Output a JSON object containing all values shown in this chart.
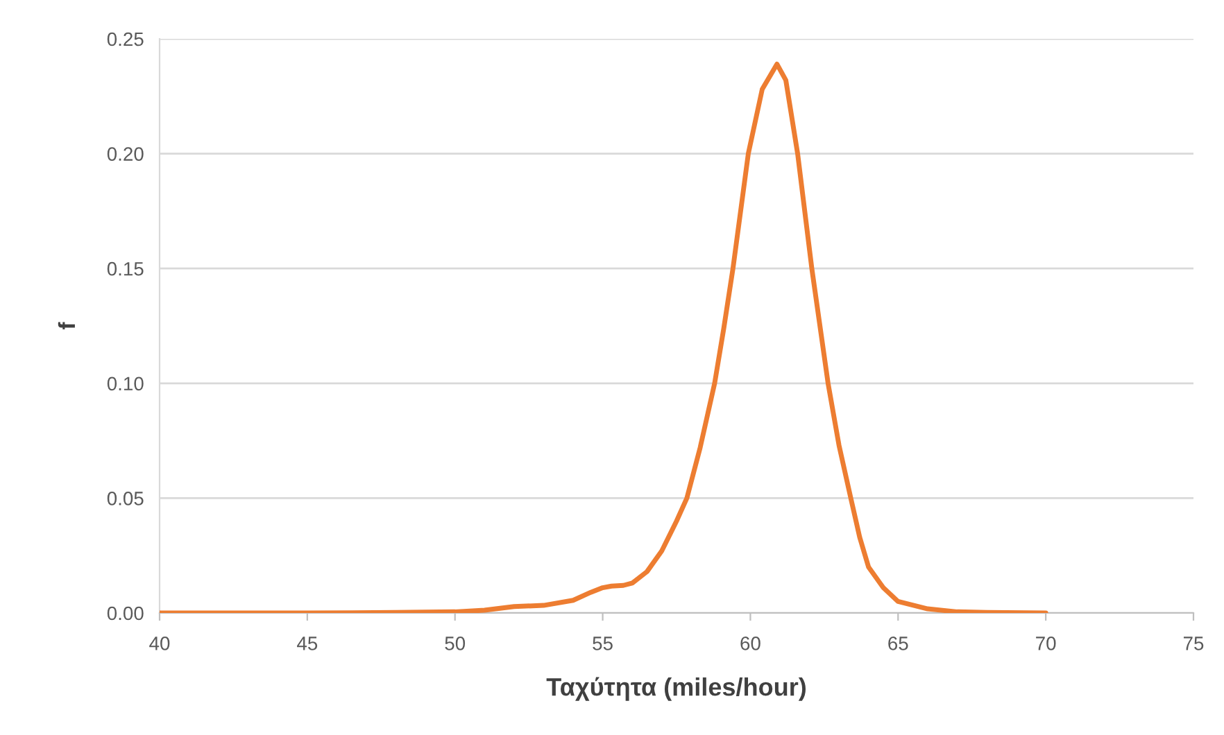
{
  "chart_data": {
    "type": "line",
    "xlabel": "Ταχύτητα (miles/hour)",
    "ylabel": "f",
    "x": [
      40,
      45,
      48,
      50,
      51,
      52,
      53,
      54,
      54.6,
      55,
      55.3,
      55.7,
      56,
      56.5,
      57,
      57.5,
      57.85,
      58.3,
      58.79,
      59.1,
      59.41,
      59.93,
      60.4,
      60.9,
      61.2,
      61.6,
      62.08,
      62.63,
      63,
      63.4,
      63.7,
      64,
      64.5,
      65,
      66,
      67,
      68,
      70
    ],
    "series": [
      {
        "color": "#ed7d31",
        "values": [
          0,
          0,
          0.0002,
          0.0005,
          0.0012,
          0.0028,
          0.0033,
          0.0055,
          0.009,
          0.011,
          0.0117,
          0.012,
          0.013,
          0.018,
          0.027,
          0.04,
          0.05,
          0.072,
          0.1,
          0.124,
          0.15,
          0.2,
          0.228,
          0.239,
          0.232,
          0.2,
          0.15,
          0.1,
          0.073,
          0.05,
          0.033,
          0.02,
          0.011,
          0.005,
          0.0018,
          0.0005,
          0.0002,
          0
        ]
      }
    ],
    "xlim": [
      40,
      75
    ],
    "xticks": [
      40,
      45,
      50,
      55,
      60,
      65,
      70,
      75
    ],
    "ylim": [
      0,
      0.25
    ],
    "yticks": [
      {
        "value": 0,
        "label": "0.00"
      },
      {
        "value": 0.05,
        "label": "0.05"
      },
      {
        "value": 0.1,
        "label": "0.10"
      },
      {
        "value": 0.15,
        "label": "0.15"
      },
      {
        "value": 0.2,
        "label": "0.20"
      },
      {
        "value": 0.25,
        "label": "0.25"
      }
    ],
    "grid": "y",
    "marker": "none",
    "line_style": "solid"
  }
}
